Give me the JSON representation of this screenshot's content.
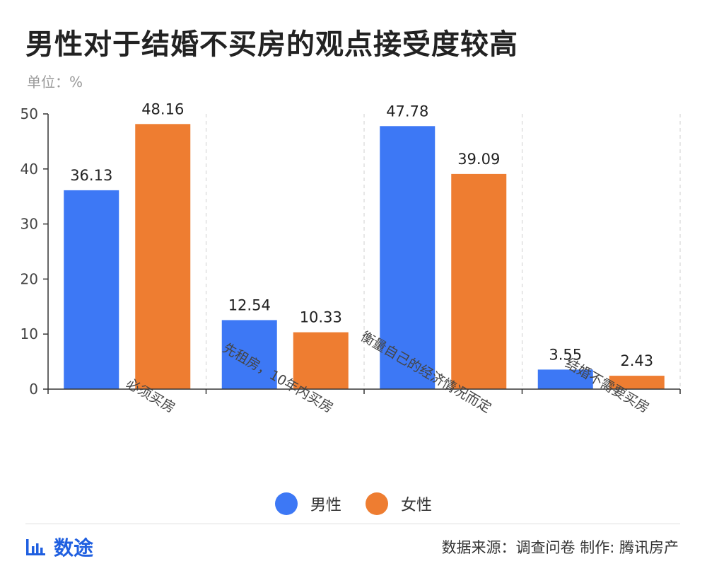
{
  "title": "男性对于结婚不买房的观点接受度较高",
  "unit_label": "单位：%",
  "chart_data": {
    "type": "bar",
    "categories": [
      "必须买房",
      "先租房，10年内买房",
      "衡量自己的经济情况而定",
      "结婚不需要买房"
    ],
    "series": [
      {
        "name": "男性",
        "values": [
          36.13,
          12.54,
          47.78,
          3.55
        ],
        "color": "#3d78f5"
      },
      {
        "name": "女性",
        "values": [
          48.16,
          10.33,
          39.09,
          2.43
        ],
        "color": "#ee7d31"
      }
    ],
    "ylim": [
      0,
      50
    ],
    "yticks": [
      0,
      10,
      20,
      30,
      40,
      50
    ],
    "grid": "vertical-dashed",
    "legend_position": "bottom-center"
  },
  "footer": {
    "brand_name": "数途",
    "brand_icon": "bar-chart-icon",
    "brand_color": "#1f5fe0",
    "source_text": "数据来源：调查问卷  制作: 腾讯房产"
  }
}
